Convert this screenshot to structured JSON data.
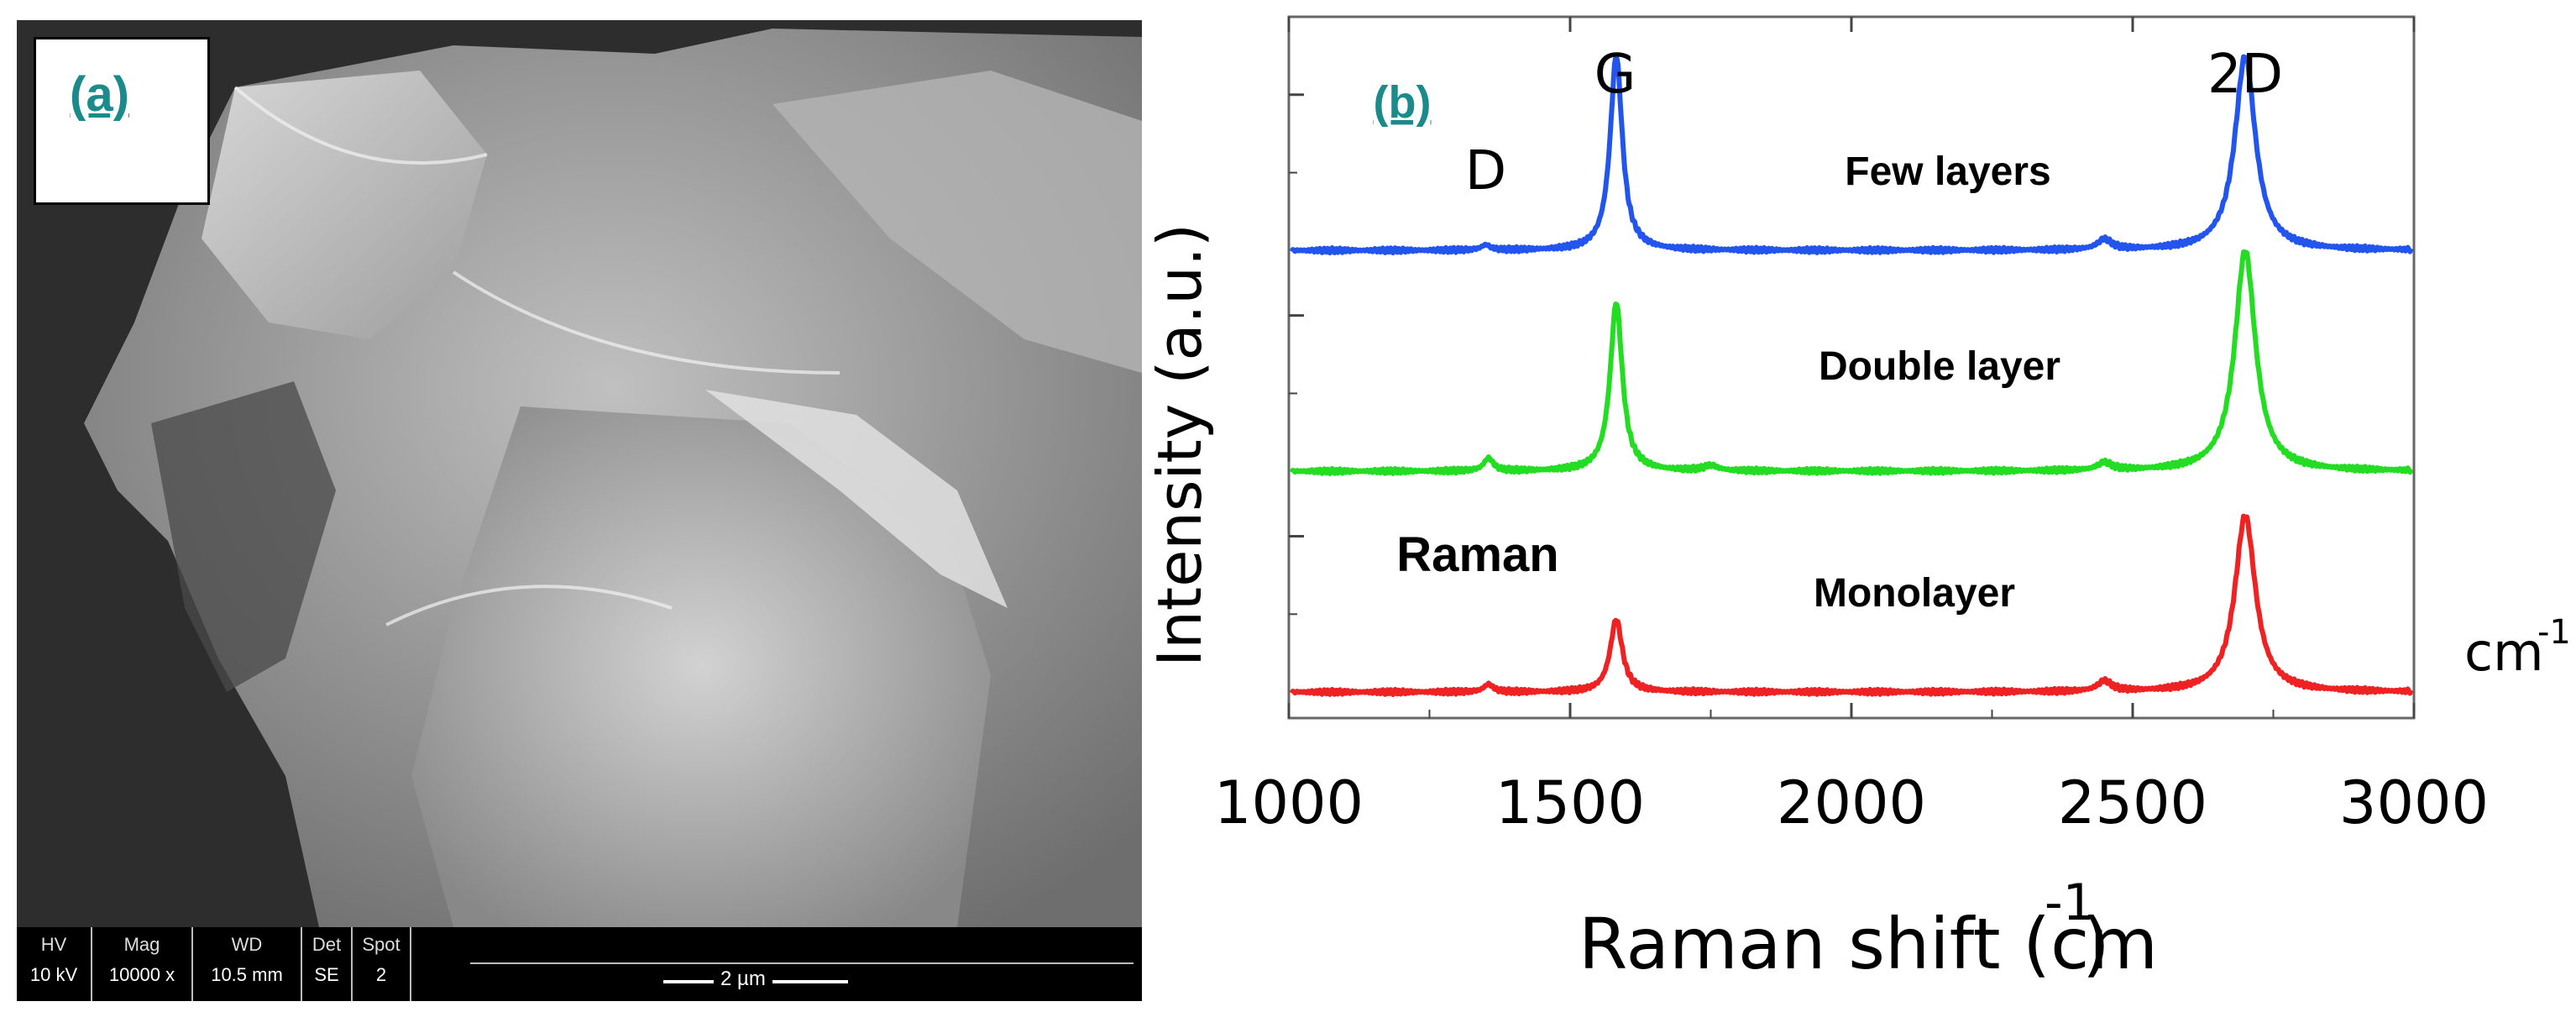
{
  "panel_a": {
    "label": "(a)",
    "databar": {
      "cells": [
        {
          "header": "HV",
          "value": "10 kV"
        },
        {
          "header": "Mag",
          "value": "10000 x"
        },
        {
          "header": "WD",
          "value": "10.5 mm"
        },
        {
          "header": "Det",
          "value": "SE"
        },
        {
          "header": "Spot",
          "value": "2"
        }
      ],
      "scale_bar": "2 µm"
    }
  },
  "chart_data": {
    "type": "line",
    "panel_label": "(b)",
    "xlabel": "Raman shift (cm",
    "xlabel_sup": "-1",
    "xlabel_close": ")",
    "ylabel": "Intensity (a.u.)",
    "xlim": [
      1000,
      3000
    ],
    "x_ticks": [
      1000,
      1500,
      2000,
      2500,
      3000
    ],
    "tick_labels": [
      "1000",
      "1500",
      "2000",
      "2500",
      "3000"
    ],
    "peak_labels": [
      {
        "text": "D",
        "x": 1350
      },
      {
        "text": "G",
        "x": 1580
      },
      {
        "text": "2D",
        "x": 2700
      }
    ],
    "annotations": {
      "raman": "Raman",
      "unit": "cm",
      "unit_sup": "-1"
    },
    "series": [
      {
        "name": "Few layers",
        "color": "#2255ee",
        "baseline": 0.85,
        "peaks": [
          {
            "x": 1350,
            "height": 0.02,
            "width": 10
          },
          {
            "x": 1582,
            "height": 0.75,
            "width": 13
          },
          {
            "x": 2450,
            "height": 0.04,
            "width": 15
          },
          {
            "x": 2700,
            "height": 0.75,
            "width": 22
          }
        ]
      },
      {
        "name": "Double layer",
        "color": "#22dd22",
        "baseline": 0.0,
        "peaks": [
          {
            "x": 1355,
            "height": 0.05,
            "width": 10
          },
          {
            "x": 1582,
            "height": 0.65,
            "width": 13
          },
          {
            "x": 1750,
            "height": 0.02,
            "width": 15
          },
          {
            "x": 2450,
            "height": 0.03,
            "width": 15
          },
          {
            "x": 2700,
            "height": 0.85,
            "width": 22
          }
        ]
      },
      {
        "name": "Monolayer",
        "color": "#ee2222",
        "baseline": -0.85,
        "peaks": [
          {
            "x": 1355,
            "height": 0.03,
            "width": 10
          },
          {
            "x": 1582,
            "height": 0.28,
            "width": 13
          },
          {
            "x": 2450,
            "height": 0.04,
            "width": 15
          },
          {
            "x": 2700,
            "height": 0.68,
            "width": 22
          }
        ]
      }
    ]
  }
}
